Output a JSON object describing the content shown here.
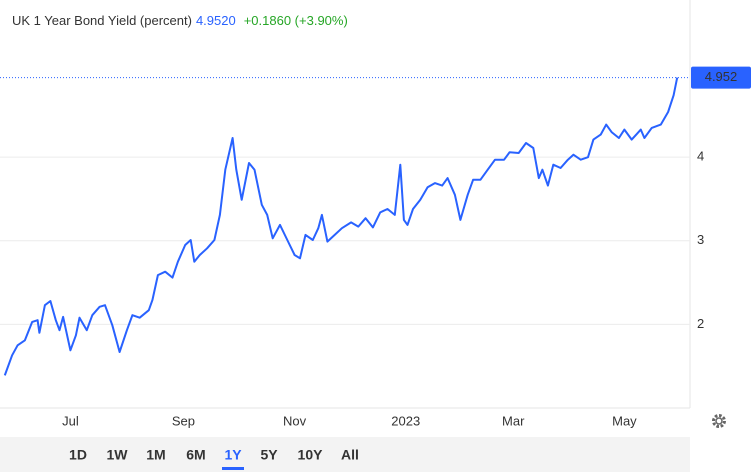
{
  "chart_data": {
    "type": "line",
    "title": "UK 1 Year Bond Yield (percent)",
    "quote": "4.9520",
    "change": "+0.1860 (+3.90%)",
    "series": [
      {
        "name": "UK 1 Year Bond Yield",
        "color": "#2962ff",
        "x": [
          1,
          5,
          8,
          12,
          16,
          19,
          20,
          23,
          26,
          29,
          31,
          33,
          37,
          40,
          42,
          46,
          49,
          53,
          56,
          60,
          64,
          68,
          71,
          75,
          80,
          82,
          85,
          89,
          93,
          96,
          100,
          103,
          105,
          108,
          112,
          116,
          119,
          122,
          126,
          128,
          131,
          135,
          138,
          142,
          145,
          148,
          152,
          156,
          160,
          163,
          166,
          170,
          173,
          175,
          178,
          182,
          186,
          191,
          195,
          199,
          203,
          207,
          211,
          215,
          218,
          220,
          222,
          225,
          229,
          233,
          237,
          241,
          244,
          248,
          251,
          255,
          258,
          262,
          266,
          270,
          275,
          278,
          283,
          287,
          291,
          294,
          296,
          299,
          302,
          306,
          310,
          313,
          317,
          321,
          324,
          328,
          331,
          334,
          338,
          341,
          345,
          350,
          352,
          356,
          361,
          365,
          368,
          370
        ],
        "values": [
          1.39,
          1.63,
          1.75,
          1.81,
          2.03,
          2.05,
          1.9,
          2.23,
          2.28,
          2.05,
          1.93,
          2.09,
          1.69,
          1.87,
          2.08,
          1.93,
          2.11,
          2.21,
          2.23,
          1.99,
          1.67,
          1.93,
          2.11,
          2.08,
          2.17,
          2.29,
          2.59,
          2.63,
          2.56,
          2.75,
          2.95,
          3.01,
          2.75,
          2.83,
          2.91,
          3.01,
          3.31,
          3.85,
          4.23,
          3.85,
          3.49,
          3.93,
          3.85,
          3.43,
          3.31,
          3.03,
          3.19,
          3.01,
          2.83,
          2.79,
          3.07,
          3.01,
          3.15,
          3.31,
          2.99,
          3.07,
          3.15,
          3.22,
          3.17,
          3.27,
          3.16,
          3.34,
          3.38,
          3.31,
          3.91,
          3.25,
          3.19,
          3.38,
          3.49,
          3.64,
          3.69,
          3.66,
          3.75,
          3.55,
          3.25,
          3.55,
          3.73,
          3.73,
          3.85,
          3.97,
          3.97,
          4.06,
          4.05,
          4.17,
          4.11,
          3.75,
          3.85,
          3.66,
          3.91,
          3.87,
          3.97,
          4.03,
          3.97,
          4.0,
          4.21,
          4.27,
          4.39,
          4.3,
          4.23,
          4.33,
          4.21,
          4.33,
          4.23,
          4.35,
          4.39,
          4.54,
          4.74,
          4.952
        ]
      }
    ],
    "xlim": [
      0,
      377
    ],
    "xticks": [
      {
        "value": 37,
        "label": "Jul"
      },
      {
        "value": 99,
        "label": "Sep"
      },
      {
        "value": 160,
        "label": "Nov"
      },
      {
        "value": 221,
        "label": "2023"
      },
      {
        "value": 280,
        "label": "Mar"
      },
      {
        "value": 341,
        "label": "May"
      }
    ],
    "ylim": [
      1.0,
      5.88
    ],
    "yticks": [
      2,
      3,
      4
    ],
    "grid": true,
    "ranges": [
      "1D",
      "1W",
      "1M",
      "6M",
      "1Y",
      "5Y",
      "10Y",
      "All"
    ],
    "selected_range": "1Y"
  }
}
